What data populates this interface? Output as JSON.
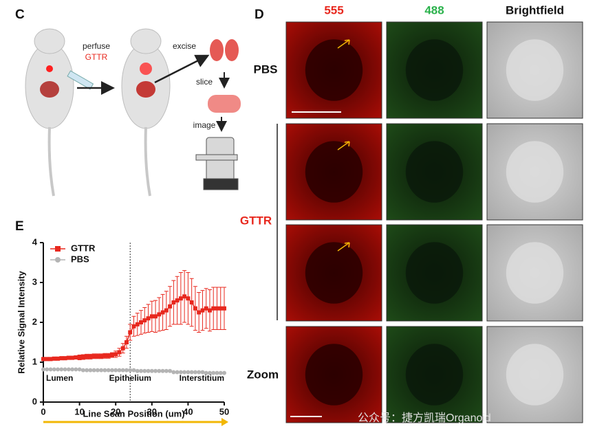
{
  "figure": {
    "panel_c": {
      "label": "C",
      "perfuse": "perfuse",
      "gttr": "GTTR",
      "excise": "excise",
      "slice": "slice",
      "image": "image"
    },
    "panel_d": {
      "label": "D",
      "columns": [
        "555",
        "488",
        "Brightfield"
      ],
      "rows": [
        "PBS",
        "GTTR",
        "Zoom"
      ]
    },
    "panel_e_label": "E",
    "watermark": "公众号：捷方凯瑞Organoid"
  },
  "chart_data": {
    "type": "line",
    "xlabel": "Line Scan Position (um)",
    "ylabel": "Relative Signal Intensity",
    "x": [
      0,
      1,
      2,
      3,
      4,
      5,
      6,
      7,
      8,
      9,
      10,
      11,
      12,
      13,
      14,
      15,
      16,
      17,
      18,
      19,
      20,
      21,
      22,
      23,
      24,
      25,
      26,
      27,
      28,
      29,
      30,
      31,
      32,
      33,
      34,
      35,
      36,
      37,
      38,
      39,
      40,
      41,
      42,
      43,
      44,
      45,
      46,
      47,
      48,
      49,
      50
    ],
    "series": [
      {
        "name": "GTTR",
        "color": "#e8281e",
        "marker": "square",
        "values": [
          1.08,
          1.08,
          1.08,
          1.09,
          1.09,
          1.1,
          1.1,
          1.11,
          1.11,
          1.12,
          1.12,
          1.13,
          1.14,
          1.14,
          1.15,
          1.15,
          1.15,
          1.16,
          1.16,
          1.18,
          1.2,
          1.25,
          1.35,
          1.5,
          1.75,
          1.9,
          1.95,
          2.0,
          2.05,
          2.1,
          2.15,
          2.15,
          2.2,
          2.25,
          2.3,
          2.4,
          2.5,
          2.55,
          2.6,
          2.65,
          2.6,
          2.5,
          2.35,
          2.25,
          2.3,
          2.35,
          2.3,
          2.35,
          2.35,
          2.35,
          2.35
        ],
        "errors": [
          0.04,
          0.04,
          0.04,
          0.04,
          0.04,
          0.04,
          0.04,
          0.04,
          0.04,
          0.04,
          0.06,
          0.06,
          0.06,
          0.06,
          0.06,
          0.06,
          0.06,
          0.06,
          0.06,
          0.06,
          0.08,
          0.1,
          0.12,
          0.15,
          0.2,
          0.25,
          0.28,
          0.3,
          0.32,
          0.35,
          0.38,
          0.4,
          0.42,
          0.45,
          0.48,
          0.5,
          0.55,
          0.6,
          0.65,
          0.65,
          0.65,
          0.6,
          0.55,
          0.5,
          0.5,
          0.5,
          0.52,
          0.53,
          0.53,
          0.53,
          0.53
        ]
      },
      {
        "name": "PBS",
        "color": "#b4b4b4",
        "marker": "circle",
        "values": [
          0.82,
          0.82,
          0.82,
          0.82,
          0.82,
          0.82,
          0.82,
          0.82,
          0.82,
          0.82,
          0.82,
          0.8,
          0.8,
          0.8,
          0.8,
          0.8,
          0.8,
          0.8,
          0.8,
          0.8,
          0.8,
          0.8,
          0.8,
          0.8,
          0.8,
          0.8,
          0.78,
          0.78,
          0.78,
          0.78,
          0.78,
          0.78,
          0.78,
          0.78,
          0.78,
          0.78,
          0.75,
          0.75,
          0.75,
          0.75,
          0.75,
          0.75,
          0.75,
          0.75,
          0.75,
          0.73,
          0.73,
          0.73,
          0.73,
          0.73,
          0.73
        ]
      }
    ],
    "xlim": [
      0,
      50
    ],
    "ylim": [
      0,
      4
    ],
    "xticks": [
      0,
      10,
      20,
      30,
      40,
      50
    ],
    "yticks": [
      0,
      1,
      2,
      3,
      4
    ],
    "vline": 24,
    "annotations": [
      "Lumen",
      "Epithelium",
      "Interstitium"
    ],
    "legend": "upper-left"
  }
}
